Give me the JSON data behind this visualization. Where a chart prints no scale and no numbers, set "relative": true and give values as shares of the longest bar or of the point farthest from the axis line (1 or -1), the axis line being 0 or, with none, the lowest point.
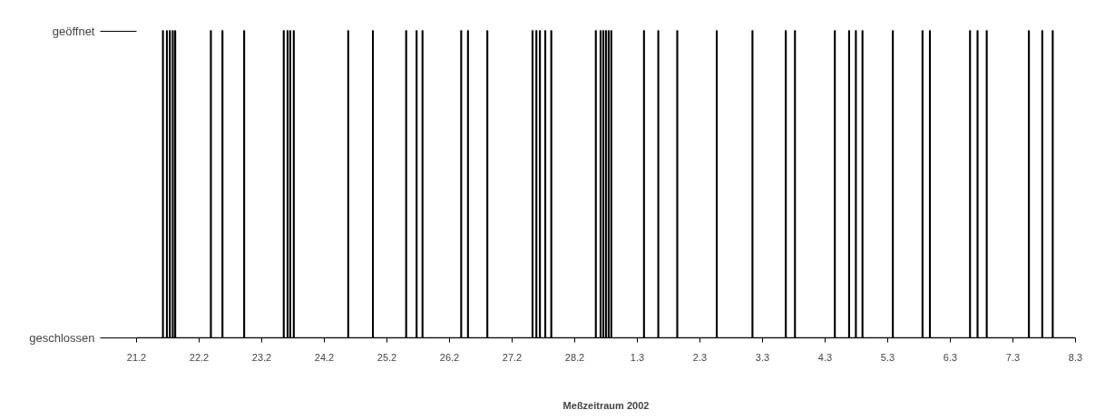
{
  "chart_data": {
    "type": "step",
    "xlabel": "Meßzeitraum 2002",
    "series": [
      {
        "color": "#000000",
        "x": [
          "2002-02-21T00:00",
          "2002-02-21T10:00",
          "2002-02-21T10:15",
          "2002-02-21T11:31",
          "2002-02-21T11:46",
          "2002-02-21T12:39",
          "2002-02-21T12:54",
          "2002-02-21T13:47",
          "2002-02-21T14:02",
          "2002-02-21T14:42",
          "2002-02-21T14:57",
          "2002-02-22T04:23",
          "2002-02-22T04:38",
          "2002-02-22T08:49",
          "2002-02-22T09:04",
          "2002-02-22T17:08",
          "2002-02-22T17:23",
          "2002-02-23T08:19",
          "2002-02-23T08:34",
          "2002-02-23T09:47",
          "2002-02-23T10:02",
          "2002-02-23T10:48",
          "2002-02-23T11:03",
          "2002-02-23T12:10",
          "2002-02-23T12:25",
          "2002-02-24T09:02",
          "2002-02-24T09:17",
          "2002-02-24T18:30",
          "2002-02-24T18:45",
          "2002-02-25T07:15",
          "2002-02-25T07:30",
          "2002-02-25T11:15",
          "2002-02-25T11:30",
          "2002-02-25T13:31",
          "2002-02-25T13:46",
          "2002-02-26T04:21",
          "2002-02-26T04:36",
          "2002-02-26T06:57",
          "2002-02-26T07:12",
          "2002-02-26T14:22",
          "2002-02-26T14:37",
          "2002-02-27T07:42",
          "2002-02-27T07:57",
          "2002-02-27T09:10",
          "2002-02-27T09:25",
          "2002-02-27T10:32",
          "2002-02-27T10:47",
          "2002-02-27T12:35",
          "2002-02-27T12:50",
          "2002-02-27T14:53",
          "2002-02-27T15:08",
          "2002-02-28T07:58",
          "2002-02-28T08:13",
          "2002-02-28T09:47",
          "2002-02-28T10:02",
          "2002-02-28T10:49",
          "2002-02-28T11:04",
          "2002-02-28T11:50",
          "2002-02-28T12:05",
          "2002-02-28T12:52",
          "2002-02-28T13:07",
          "2002-02-28T13:53",
          "2002-02-28T14:08",
          "2002-03-01T02:26",
          "2002-03-01T02:41",
          "2002-03-01T07:55",
          "2002-03-01T08:10",
          "2002-03-01T15:11",
          "2002-03-01T15:26",
          "2002-03-02T06:20",
          "2002-03-02T06:35",
          "2002-03-02T20:01",
          "2002-03-02T20:16",
          "2002-03-03T08:48",
          "2002-03-03T09:03",
          "2002-03-03T12:19",
          "2002-03-03T12:34",
          "2002-03-04T03:36",
          "2002-03-04T03:51",
          "2002-03-04T09:04",
          "2002-03-04T09:19",
          "2002-03-04T11:40",
          "2002-03-04T11:55",
          "2002-03-04T14:12",
          "2002-03-04T14:27",
          "2002-03-05T01:50",
          "2002-03-05T02:05",
          "2002-03-05T13:13",
          "2002-03-05T13:28",
          "2002-03-05T16:03",
          "2002-03-05T16:18",
          "2002-03-06T07:26",
          "2002-03-06T07:41",
          "2002-03-06T10:19",
          "2002-03-06T10:34",
          "2002-03-06T13:50",
          "2002-03-06T14:05",
          "2002-03-07T06:00",
          "2002-03-07T06:15",
          "2002-03-07T11:08",
          "2002-03-07T11:23",
          "2002-03-07T15:08",
          "2002-03-07T15:23",
          "2002-03-08T00:00"
        ],
        "values": [
          0,
          1,
          0,
          1,
          0,
          1,
          0,
          1,
          0,
          1,
          0,
          1,
          0,
          1,
          0,
          1,
          0,
          1,
          0,
          1,
          0,
          1,
          0,
          1,
          0,
          1,
          0,
          1,
          0,
          1,
          0,
          1,
          0,
          1,
          0,
          1,
          0,
          1,
          0,
          1,
          0,
          1,
          0,
          1,
          0,
          1,
          0,
          1,
          0,
          1,
          0,
          1,
          0,
          1,
          0,
          1,
          0,
          1,
          0,
          1,
          0,
          1,
          0,
          1,
          0,
          1,
          0,
          1,
          0,
          1,
          0,
          1,
          0,
          1,
          0,
          1,
          0,
          1,
          0,
          1,
          0,
          1,
          0,
          1,
          0,
          1,
          0,
          1,
          0,
          1,
          0,
          1,
          0,
          1,
          0,
          1,
          0,
          1,
          0,
          1,
          0,
          1,
          0,
          0
        ]
      }
    ],
    "xlim": [
      "2002-02-21",
      "2002-03-08"
    ],
    "xticks": [
      {
        "value": "2002-02-21",
        "label": "21.2"
      },
      {
        "value": "2002-02-22",
        "label": "22.2"
      },
      {
        "value": "2002-02-23",
        "label": "23.2"
      },
      {
        "value": "2002-02-24",
        "label": "24.2"
      },
      {
        "value": "2002-02-25",
        "label": "25.2"
      },
      {
        "value": "2002-02-26",
        "label": "26.2"
      },
      {
        "value": "2002-02-27",
        "label": "27.2"
      },
      {
        "value": "2002-02-28",
        "label": "28.2"
      },
      {
        "value": "2002-03-01",
        "label": "1.3"
      },
      {
        "value": "2002-03-02",
        "label": "2.3"
      },
      {
        "value": "2002-03-03",
        "label": "3.3"
      },
      {
        "value": "2002-03-04",
        "label": "4.3"
      },
      {
        "value": "2002-03-05",
        "label": "5.3"
      },
      {
        "value": "2002-03-06",
        "label": "6.3"
      },
      {
        "value": "2002-03-07",
        "label": "7.3"
      },
      {
        "value": "2002-03-08",
        "label": "8.3"
      }
    ],
    "relative": true,
    "annotations": [
      "geöffnet",
      "geschlossen"
    ],
    "grid": false
  }
}
